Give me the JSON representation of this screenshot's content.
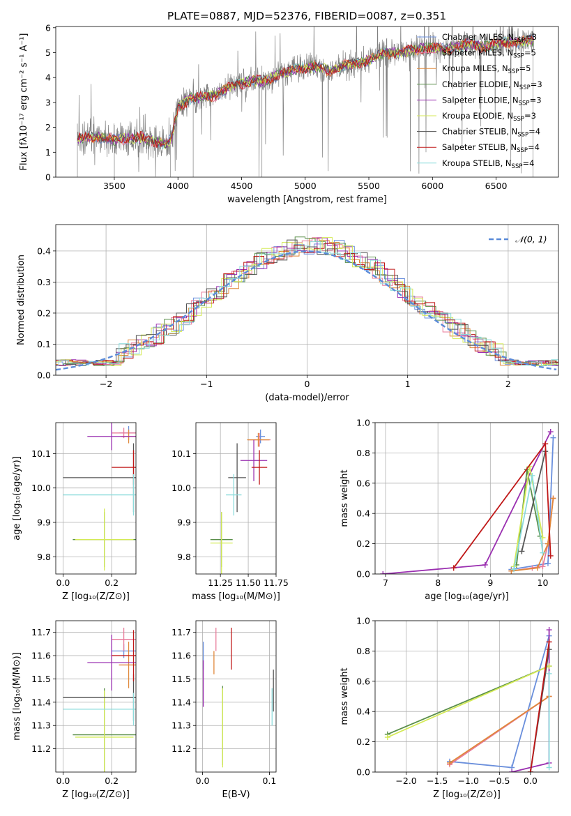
{
  "figure_title": "PLATE=0887, MJD=52376, FIBERID=0087, z=0.351",
  "colors": {
    "chabrier_miles": "#6a8fdc",
    "salpeter_miles": "#e87a9a",
    "kroupa_miles": "#e0883a",
    "chabrier_elodie": "#5a8f4a",
    "salpeter_elodie": "#9a2fb0",
    "kroupa_elodie": "#d4ea56",
    "chabrier_stelib": "#555555",
    "salpeter_stelib": "#c01818",
    "kroupa_stelib": "#8cdcdc",
    "data": "#808080",
    "gaussian": "#5a8ad8"
  },
  "chart_data": [
    {
      "id": "spectrum",
      "type": "line",
      "xlabel": "wavelength [Angstrom, rest frame]",
      "ylabel": "Flux [fλ10⁻¹⁷ erg cm⁻² s⁻¹ A⁻¹]",
      "xlim": [
        3040,
        6990
      ],
      "ylim": [
        0,
        6.05
      ],
      "xticks": [
        3500,
        4000,
        4500,
        5000,
        5500,
        6000,
        6500
      ],
      "yticks": [
        0,
        1,
        2,
        3,
        4,
        5,
        6
      ],
      "grid": false,
      "legend_position": "top-right",
      "legend": [
        {
          "label": "Chabrier MILES, N",
          "sub": "SSP",
          "tail": "=3",
          "color_key": "chabrier_miles"
        },
        {
          "label": "Salpeter MILES, N",
          "sub": "SSP",
          "tail": "=5",
          "color_key": "salpeter_miles"
        },
        {
          "label": "Kroupa MILES, N",
          "sub": "SSP",
          "tail": "=5",
          "color_key": "kroupa_miles"
        },
        {
          "label": "Chabrier ELODIE, N",
          "sub": "SSP",
          "tail": "=3",
          "color_key": "chabrier_elodie"
        },
        {
          "label": "Salpeter ELODIE, N",
          "sub": "SSP",
          "tail": "=3",
          "color_key": "salpeter_elodie"
        },
        {
          "label": "Kroupa ELODIE, N",
          "sub": "SSP",
          "tail": "=3",
          "color_key": "kroupa_elodie"
        },
        {
          "label": "Chabrier STELIB, N",
          "sub": "SSP",
          "tail": "=4",
          "color_key": "chabrier_stelib"
        },
        {
          "label": "Salpeter STELIB, N",
          "sub": "SSP",
          "tail": "=4",
          "color_key": "salpeter_stelib"
        },
        {
          "label": "Kroupa STELIB, N",
          "sub": "SSP",
          "tail": "=4",
          "color_key": "kroupa_stelib"
        }
      ],
      "continuum": [
        [
          3210,
          1.55
        ],
        [
          3300,
          1.6
        ],
        [
          3400,
          1.6
        ],
        [
          3500,
          1.5
        ],
        [
          3600,
          1.55
        ],
        [
          3700,
          1.6
        ],
        [
          3800,
          1.45
        ],
        [
          3900,
          1.35
        ],
        [
          3950,
          1.55
        ],
        [
          4000,
          2.8
        ],
        [
          4100,
          3.15
        ],
        [
          4200,
          3.2
        ],
        [
          4300,
          3.3
        ],
        [
          4400,
          3.6
        ],
        [
          4500,
          3.75
        ],
        [
          4600,
          3.9
        ],
        [
          4700,
          3.85
        ],
        [
          4800,
          4.15
        ],
        [
          4900,
          4.3
        ],
        [
          5000,
          4.4
        ],
        [
          5100,
          4.45
        ],
        [
          5200,
          4.25
        ],
        [
          5300,
          4.5
        ],
        [
          5400,
          4.55
        ],
        [
          5500,
          4.7
        ],
        [
          5600,
          4.95
        ],
        [
          5700,
          5.0
        ],
        [
          5800,
          5.05
        ],
        [
          5900,
          5.15
        ],
        [
          6000,
          5.2
        ],
        [
          6100,
          5.15
        ],
        [
          6200,
          5.25
        ],
        [
          6300,
          5.35
        ],
        [
          6400,
          5.2
        ],
        [
          6500,
          5.35
        ],
        [
          6600,
          5.4
        ],
        [
          6700,
          5.45
        ],
        [
          6800,
          5.5
        ]
      ]
    },
    {
      "id": "residuals",
      "type": "histogram",
      "xlabel": "(data-model)/error",
      "ylabel": "Normed distribution",
      "xlim": [
        -2.5,
        2.5
      ],
      "ylim": [
        0,
        0.485
      ],
      "xticks": [
        -2,
        -1,
        0,
        1,
        2
      ],
      "yticks": [
        0.0,
        0.1,
        0.2,
        0.3,
        0.4
      ],
      "grid": true,
      "legend_position": "top-right",
      "legend": [
        {
          "label": "𝒩(0, 1)",
          "color_key": "gaussian",
          "dashed": true
        }
      ],
      "bin_width": 0.1,
      "series": [
        {
          "name": "chabrier_miles",
          "offset": 0.07,
          "color_key": "chabrier_miles"
        },
        {
          "name": "salpeter_miles",
          "offset": -0.05,
          "color_key": "salpeter_miles"
        },
        {
          "name": "kroupa_miles",
          "offset": 0.02,
          "color_key": "kroupa_miles"
        },
        {
          "name": "chabrier_elodie",
          "offset": -0.02,
          "color_key": "chabrier_elodie"
        },
        {
          "name": "salpeter_elodie",
          "offset": 0.0,
          "color_key": "salpeter_elodie"
        },
        {
          "name": "kroupa_elodie",
          "offset": 0.05,
          "color_key": "kroupa_elodie"
        },
        {
          "name": "chabrier_stelib",
          "offset": 0.0,
          "color_key": "chabrier_stelib"
        },
        {
          "name": "salpeter_stelib",
          "offset": -0.03,
          "color_key": "salpeter_stelib"
        },
        {
          "name": "kroupa_stelib",
          "offset": 0.03,
          "color_key": "kroupa_stelib"
        }
      ]
    },
    {
      "id": "age_vs_Z",
      "type": "errorbar",
      "xlabel": "Z [log₁₀(Z/Z⊙)]",
      "ylabel": "age  [log₁₀(age/yr)]",
      "xlim": [
        -0.03,
        0.3
      ],
      "ylim": [
        9.75,
        10.19
      ],
      "xticks": [
        0.0,
        0.2
      ],
      "yticks": [
        9.8,
        9.9,
        10.0,
        10.1
      ],
      "grid": true,
      "points": [
        {
          "color_key": "chabrier_miles",
          "x": 0.27,
          "y": 10.16,
          "xerr": 0.04,
          "yerr": 0.02
        },
        {
          "color_key": "salpeter_miles",
          "x": 0.25,
          "y": 10.16,
          "xerr": 0.05,
          "yerr": 0.015
        },
        {
          "color_key": "kroupa_miles",
          "x": 0.27,
          "y": 10.15,
          "xerr": 0.03,
          "yerr": 0.02
        },
        {
          "color_key": "chabrier_elodie",
          "x": 0.17,
          "y": 9.85,
          "xerr": 0.13,
          "yerr": 0.08
        },
        {
          "color_key": "salpeter_elodie",
          "x": 0.2,
          "y": 10.15,
          "xerr": 0.1,
          "yerr": 0.04
        },
        {
          "color_key": "kroupa_elodie",
          "x": 0.17,
          "y": 9.85,
          "xerr": 0.12,
          "yerr": 0.09
        },
        {
          "color_key": "chabrier_stelib",
          "x": 0.29,
          "y": 10.03,
          "xerr": 0.29,
          "yerr": 0.1
        },
        {
          "color_key": "salpeter_stelib",
          "x": 0.29,
          "y": 10.06,
          "xerr": 0.09,
          "yerr": 0.05
        },
        {
          "color_key": "kroupa_stelib",
          "x": 0.29,
          "y": 9.98,
          "xerr": 0.29,
          "yerr": 0.06
        }
      ]
    },
    {
      "id": "age_vs_mass",
      "type": "errorbar",
      "xlabel": "mass [log₁₀(M/M⊙)]",
      "ylabel": "",
      "xlim": [
        11.03,
        11.75
      ],
      "ylim": [
        9.75,
        10.19
      ],
      "xticks": [
        11.25,
        11.5,
        11.75
      ],
      "yticks": [
        9.8,
        9.9,
        10.0,
        10.1
      ],
      "grid": true,
      "points": [
        {
          "color_key": "chabrier_miles",
          "x": 11.61,
          "y": 10.15,
          "xerr": 0.04,
          "yerr": 0.02
        },
        {
          "color_key": "salpeter_miles",
          "x": 11.6,
          "y": 10.14,
          "xerr": 0.1,
          "yerr": 0.02
        },
        {
          "color_key": "kroupa_miles",
          "x": 11.59,
          "y": 10.14,
          "xerr": 0.1,
          "yerr": 0.02
        },
        {
          "color_key": "chabrier_elodie",
          "x": 11.26,
          "y": 9.85,
          "xerr": 0.1,
          "yerr": 0.08
        },
        {
          "color_key": "salpeter_elodie",
          "x": 11.55,
          "y": 10.08,
          "xerr": 0.12,
          "yerr": 0.06
        },
        {
          "color_key": "kroupa_elodie",
          "x": 11.26,
          "y": 9.84,
          "xerr": 0.1,
          "yerr": 0.09
        },
        {
          "color_key": "chabrier_stelib",
          "x": 11.4,
          "y": 10.03,
          "xerr": 0.08,
          "yerr": 0.1
        },
        {
          "color_key": "salpeter_stelib",
          "x": 11.6,
          "y": 10.06,
          "xerr": 0.07,
          "yerr": 0.05
        },
        {
          "color_key": "kroupa_stelib",
          "x": 11.37,
          "y": 9.98,
          "xerr": 0.07,
          "yerr": 0.06
        }
      ]
    },
    {
      "id": "weight_vs_age",
      "type": "line",
      "xlabel": "age  [log₁₀(age/yr)]",
      "ylabel": "mass weight",
      "xlim": [
        6.8,
        10.3
      ],
      "ylim": [
        0,
        1.0
      ],
      "xticks": [
        7,
        8,
        9,
        10
      ],
      "yticks": [
        0.0,
        0.2,
        0.4,
        0.6,
        0.8,
        1.0
      ],
      "grid": true,
      "series": [
        {
          "color_key": "chabrier_miles",
          "points": [
            [
              9.4,
              0.03
            ],
            [
              10.1,
              0.07
            ],
            [
              10.2,
              0.9
            ]
          ]
        },
        {
          "color_key": "salpeter_miles",
          "points": [
            [
              9.4,
              0.02
            ],
            [
              9.8,
              0.04
            ],
            [
              10.0,
              0.05
            ],
            [
              10.1,
              0.2
            ],
            [
              10.2,
              0.5
            ]
          ]
        },
        {
          "color_key": "kroupa_miles",
          "points": [
            [
              9.4,
              0.02
            ],
            [
              9.9,
              0.04
            ],
            [
              10.1,
              0.2
            ],
            [
              10.2,
              0.5
            ]
          ]
        },
        {
          "color_key": "chabrier_elodie",
          "points": [
            [
              9.5,
              0.06
            ],
            [
              9.7,
              0.69
            ],
            [
              9.95,
              0.25
            ]
          ]
        },
        {
          "color_key": "salpeter_elodie",
          "points": [
            [
              6.95,
              0.0
            ],
            [
              8.9,
              0.06
            ],
            [
              10.15,
              0.94
            ]
          ]
        },
        {
          "color_key": "kroupa_elodie",
          "points": [
            [
              9.45,
              0.05
            ],
            [
              9.75,
              0.71
            ],
            [
              10.0,
              0.24
            ]
          ]
        },
        {
          "color_key": "chabrier_stelib",
          "points": [
            [
              9.6,
              0.15
            ],
            [
              10.05,
              0.81
            ]
          ]
        },
        {
          "color_key": "salpeter_stelib",
          "points": [
            [
              8.3,
              0.04
            ],
            [
              10.05,
              0.86
            ],
            [
              10.15,
              0.12
            ]
          ]
        },
        {
          "color_key": "kroupa_stelib",
          "points": [
            [
              9.45,
              0.03
            ],
            [
              9.8,
              0.65
            ],
            [
              10.0,
              0.14
            ]
          ]
        }
      ]
    },
    {
      "id": "mass_vs_Z",
      "type": "errorbar",
      "xlabel": "Z [log₁₀(Z/Z⊙)]",
      "ylabel": "mass [log₁₀(M/M⊙)]",
      "xlim": [
        -0.03,
        0.3
      ],
      "ylim": [
        11.1,
        11.75
      ],
      "xticks": [
        0.0,
        0.2
      ],
      "yticks": [
        11.2,
        11.3,
        11.4,
        11.5,
        11.6,
        11.7
      ],
      "grid": true,
      "points": [
        {
          "color_key": "chabrier_miles",
          "x": 0.25,
          "y": 11.62,
          "xerr": 0.05,
          "yerr": 0.03
        },
        {
          "color_key": "salpeter_miles",
          "x": 0.25,
          "y": 11.67,
          "xerr": 0.05,
          "yerr": 0.05
        },
        {
          "color_key": "kroupa_miles",
          "x": 0.27,
          "y": 11.56,
          "xerr": 0.04,
          "yerr": 0.1
        },
        {
          "color_key": "chabrier_elodie",
          "x": 0.17,
          "y": 11.26,
          "xerr": 0.13,
          "yerr": 0.2
        },
        {
          "color_key": "salpeter_elodie",
          "x": 0.2,
          "y": 11.57,
          "xerr": 0.1,
          "yerr": 0.12
        },
        {
          "color_key": "kroupa_elodie",
          "x": 0.17,
          "y": 11.25,
          "xerr": 0.12,
          "yerr": 0.2
        },
        {
          "color_key": "chabrier_stelib",
          "x": 0.29,
          "y": 11.42,
          "xerr": 0.29,
          "yerr": 0.1
        },
        {
          "color_key": "salpeter_stelib",
          "x": 0.29,
          "y": 11.6,
          "xerr": 0.09,
          "yerr": 0.11
        },
        {
          "color_key": "kroupa_stelib",
          "x": 0.29,
          "y": 11.37,
          "xerr": 0.29,
          "yerr": 0.07
        }
      ]
    },
    {
      "id": "mass_vs_ebv",
      "type": "errorbar",
      "xlabel": "E(B-V)",
      "ylabel": "",
      "xlim": [
        -0.01,
        0.11
      ],
      "ylim": [
        11.1,
        11.75
      ],
      "xticks": [
        0.0,
        0.1
      ],
      "yticks": [
        11.2,
        11.3,
        11.4,
        11.5,
        11.6,
        11.7
      ],
      "grid": true,
      "points": [
        {
          "color_key": "chabrier_miles",
          "x": 0.001,
          "y": 11.6,
          "xerr": 0.0,
          "yerr": 0.06
        },
        {
          "color_key": "salpeter_miles",
          "x": 0.02,
          "y": 11.67,
          "xerr": 0.0,
          "yerr": 0.05
        },
        {
          "color_key": "kroupa_miles",
          "x": 0.017,
          "y": 11.57,
          "xerr": 0.0,
          "yerr": 0.05
        },
        {
          "color_key": "chabrier_elodie",
          "x": 0.03,
          "y": 11.3,
          "xerr": 0.0,
          "yerr": 0.17
        },
        {
          "color_key": "salpeter_elodie",
          "x": 0.001,
          "y": 11.48,
          "xerr": 0.0,
          "yerr": 0.1
        },
        {
          "color_key": "kroupa_elodie",
          "x": 0.03,
          "y": 11.29,
          "xerr": 0.0,
          "yerr": 0.17
        },
        {
          "color_key": "chabrier_stelib",
          "x": 0.106,
          "y": 11.45,
          "xerr": 0.0,
          "yerr": 0.09
        },
        {
          "color_key": "salpeter_stelib",
          "x": 0.043,
          "y": 11.63,
          "xerr": 0.0,
          "yerr": 0.09
        },
        {
          "color_key": "kroupa_stelib",
          "x": 0.104,
          "y": 11.38,
          "xerr": 0.0,
          "yerr": 0.08
        }
      ]
    },
    {
      "id": "weight_vs_Z",
      "type": "line",
      "xlabel": "Z [log₁₀(Z/Z⊙)]",
      "ylabel": "mass weight",
      "xlim": [
        -2.5,
        0.45
      ],
      "ylim": [
        0,
        1.0
      ],
      "xticks": [
        -2.0,
        -1.5,
        -1.0,
        -0.5,
        0.0
      ],
      "yticks": [
        0.0,
        0.2,
        0.4,
        0.6,
        0.8,
        1.0
      ],
      "grid": true,
      "series": [
        {
          "color_key": "chabrier_miles",
          "points": [
            [
              -1.3,
              0.07
            ],
            [
              -0.3,
              0.03
            ],
            [
              0.3,
              0.9
            ]
          ]
        },
        {
          "color_key": "salpeter_miles",
          "points": [
            [
              -1.3,
              0.05
            ],
            [
              0.3,
              0.5
            ]
          ]
        },
        {
          "color_key": "kroupa_miles",
          "points": [
            [
              -1.3,
              0.06
            ],
            [
              0.3,
              0.5
            ]
          ]
        },
        {
          "color_key": "chabrier_elodie",
          "points": [
            [
              -2.3,
              0.25
            ],
            [
              0.3,
              0.7
            ]
          ]
        },
        {
          "color_key": "salpeter_elodie",
          "points": [
            [
              -0.3,
              0.0
            ],
            [
              0.3,
              0.06
            ],
            [
              0.3,
              0.94
            ]
          ]
        },
        {
          "color_key": "kroupa_elodie",
          "points": [
            [
              -2.3,
              0.23
            ],
            [
              0.3,
              0.7
            ]
          ]
        },
        {
          "color_key": "chabrier_stelib",
          "points": [
            [
              0.0,
              0.0
            ],
            [
              0.3,
              0.81
            ]
          ]
        },
        {
          "color_key": "salpeter_stelib",
          "points": [
            [
              0.0,
              0.0
            ],
            [
              0.3,
              0.86
            ]
          ]
        },
        {
          "color_key": "kroupa_stelib",
          "points": [
            [
              0.3,
              0.03
            ],
            [
              0.3,
              0.65
            ]
          ]
        }
      ]
    }
  ]
}
